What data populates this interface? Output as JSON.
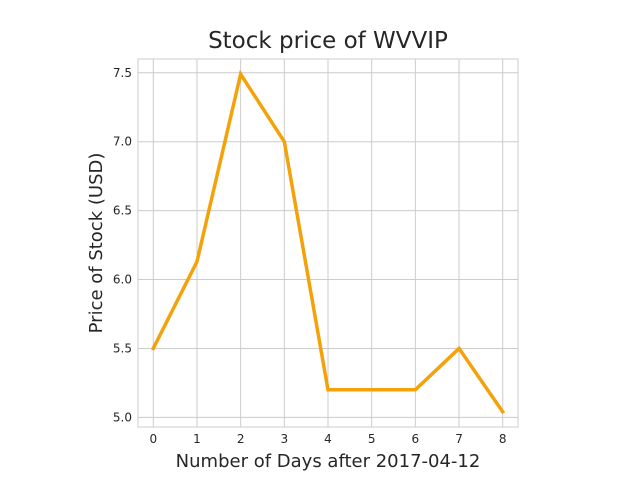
{
  "chart_data": {
    "type": "line",
    "title": "Stock price of WVVIP",
    "xlabel": "Number of Days after 2017-04-12",
    "ylabel": "Price of Stock (USD)",
    "x": [
      0,
      1,
      2,
      3,
      4,
      5,
      6,
      7,
      8
    ],
    "series": [
      {
        "values": [
          5.5,
          6.13,
          7.49,
          7.0,
          5.2,
          5.2,
          5.2,
          5.5,
          5.04
        ],
        "color": "#f5a10a"
      }
    ],
    "xlim": [
      -0.35,
      8.35
    ],
    "ylim": [
      4.93,
      7.6
    ],
    "xticks": [
      0,
      1,
      2,
      3,
      4,
      5,
      6,
      7,
      8
    ],
    "xtick_labels": [
      "0",
      "1",
      "2",
      "3",
      "4",
      "5",
      "6",
      "7",
      "8"
    ],
    "yticks": [
      5.0,
      5.5,
      6.0,
      6.5,
      7.0,
      7.5
    ],
    "ytick_labels": [
      "5.0",
      "5.5",
      "6.0",
      "6.5",
      "7.0",
      "7.5"
    ],
    "grid": true,
    "legend": "none"
  }
}
